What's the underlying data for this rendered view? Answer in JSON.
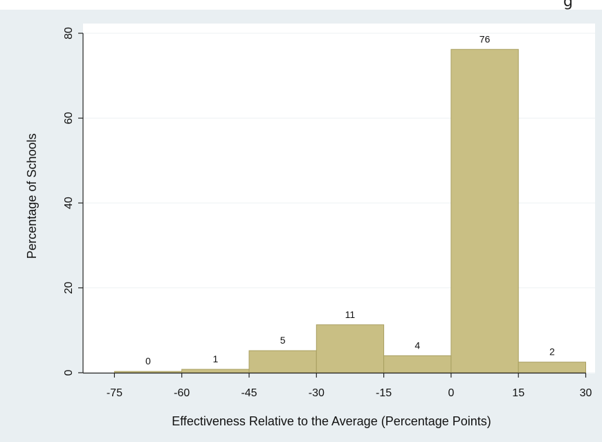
{
  "header": {
    "corner_text": "g"
  },
  "chart_data": {
    "type": "bar",
    "title": "",
    "xlabel": "Effectiveness Relative to the Average (Percentage Points)",
    "ylabel": "Percentage of Schools",
    "bins": [
      {
        "start": -75,
        "end": -60,
        "value": 0.3,
        "label": "0"
      },
      {
        "start": -60,
        "end": -45,
        "value": 0.8,
        "label": "1"
      },
      {
        "start": -45,
        "end": -30,
        "value": 5.2,
        "label": "5"
      },
      {
        "start": -30,
        "end": -15,
        "value": 11.3,
        "label": "11"
      },
      {
        "start": -15,
        "end": 0,
        "value": 4.0,
        "label": "4"
      },
      {
        "start": 0,
        "end": 15,
        "value": 76.2,
        "label": "76"
      },
      {
        "start": 15,
        "end": 30,
        "value": 2.5,
        "label": "2"
      }
    ],
    "xticks": [
      "-75",
      "-60",
      "-45",
      "-30",
      "-15",
      "0",
      "15",
      "30"
    ],
    "yticks": [
      "0",
      "20",
      "40",
      "60",
      "80"
    ],
    "xlim": [
      -82,
      30
    ],
    "ylim": [
      0,
      80
    ],
    "grid": true,
    "bar_color": "#c9bf84",
    "bar_edge_color": "#a89f60",
    "plot_background": "#ffffff",
    "frame_background": "#e9eff2"
  }
}
